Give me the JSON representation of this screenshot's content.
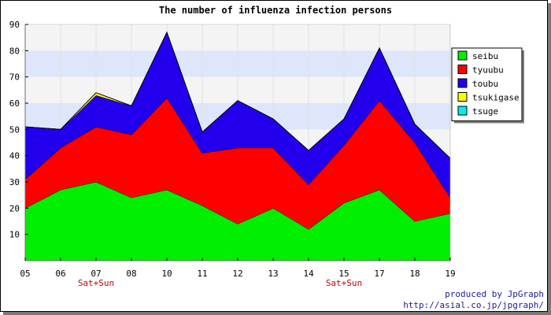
{
  "chart_data": {
    "type": "area",
    "stacked": true,
    "title": "The number of influenza infection persons",
    "categories": [
      "05",
      "06",
      "07",
      "08",
      "10",
      "11",
      "12",
      "13",
      "14",
      "15",
      "17",
      "18",
      "19"
    ],
    "category_notes": [
      {
        "category": "07",
        "text": "Sat+Sun"
      },
      {
        "category": "15",
        "text": "Sat+Sun"
      }
    ],
    "ylim": [
      0,
      90
    ],
    "yticks": [
      10,
      20,
      30,
      40,
      50,
      60,
      70,
      80,
      90
    ],
    "series": [
      {
        "name": "seibu",
        "color": "#00ee00",
        "values": [
          20,
          27,
          30,
          24,
          27,
          21,
          14,
          20,
          12,
          22,
          27,
          15,
          18
        ]
      },
      {
        "name": "tyuubu",
        "color": "#ff0000",
        "values": [
          11,
          16,
          21,
          24,
          35,
          20,
          29,
          23,
          17,
          22,
          34,
          30,
          6
        ]
      },
      {
        "name": "toubu",
        "color": "#2200ee",
        "values": [
          20,
          7,
          12,
          11,
          25,
          8,
          18,
          11,
          13,
          10,
          20,
          7,
          15
        ]
      },
      {
        "name": "tsukigase",
        "color": "#ffff00",
        "values": [
          0,
          0,
          1,
          0,
          0,
          0,
          0,
          0,
          0,
          0,
          0,
          0,
          0
        ]
      },
      {
        "name": "tsuge",
        "color": "#00eeee",
        "values": [
          0,
          0,
          0,
          0,
          0,
          0,
          0,
          0,
          0,
          0,
          0,
          0,
          0
        ]
      }
    ],
    "legend_position": "right",
    "background_bands": [
      "#f4f4f4",
      "#dde6fa"
    ],
    "credits": [
      "produced by JpGraph",
      "http://asial.co.jp/jpgraph/"
    ]
  }
}
